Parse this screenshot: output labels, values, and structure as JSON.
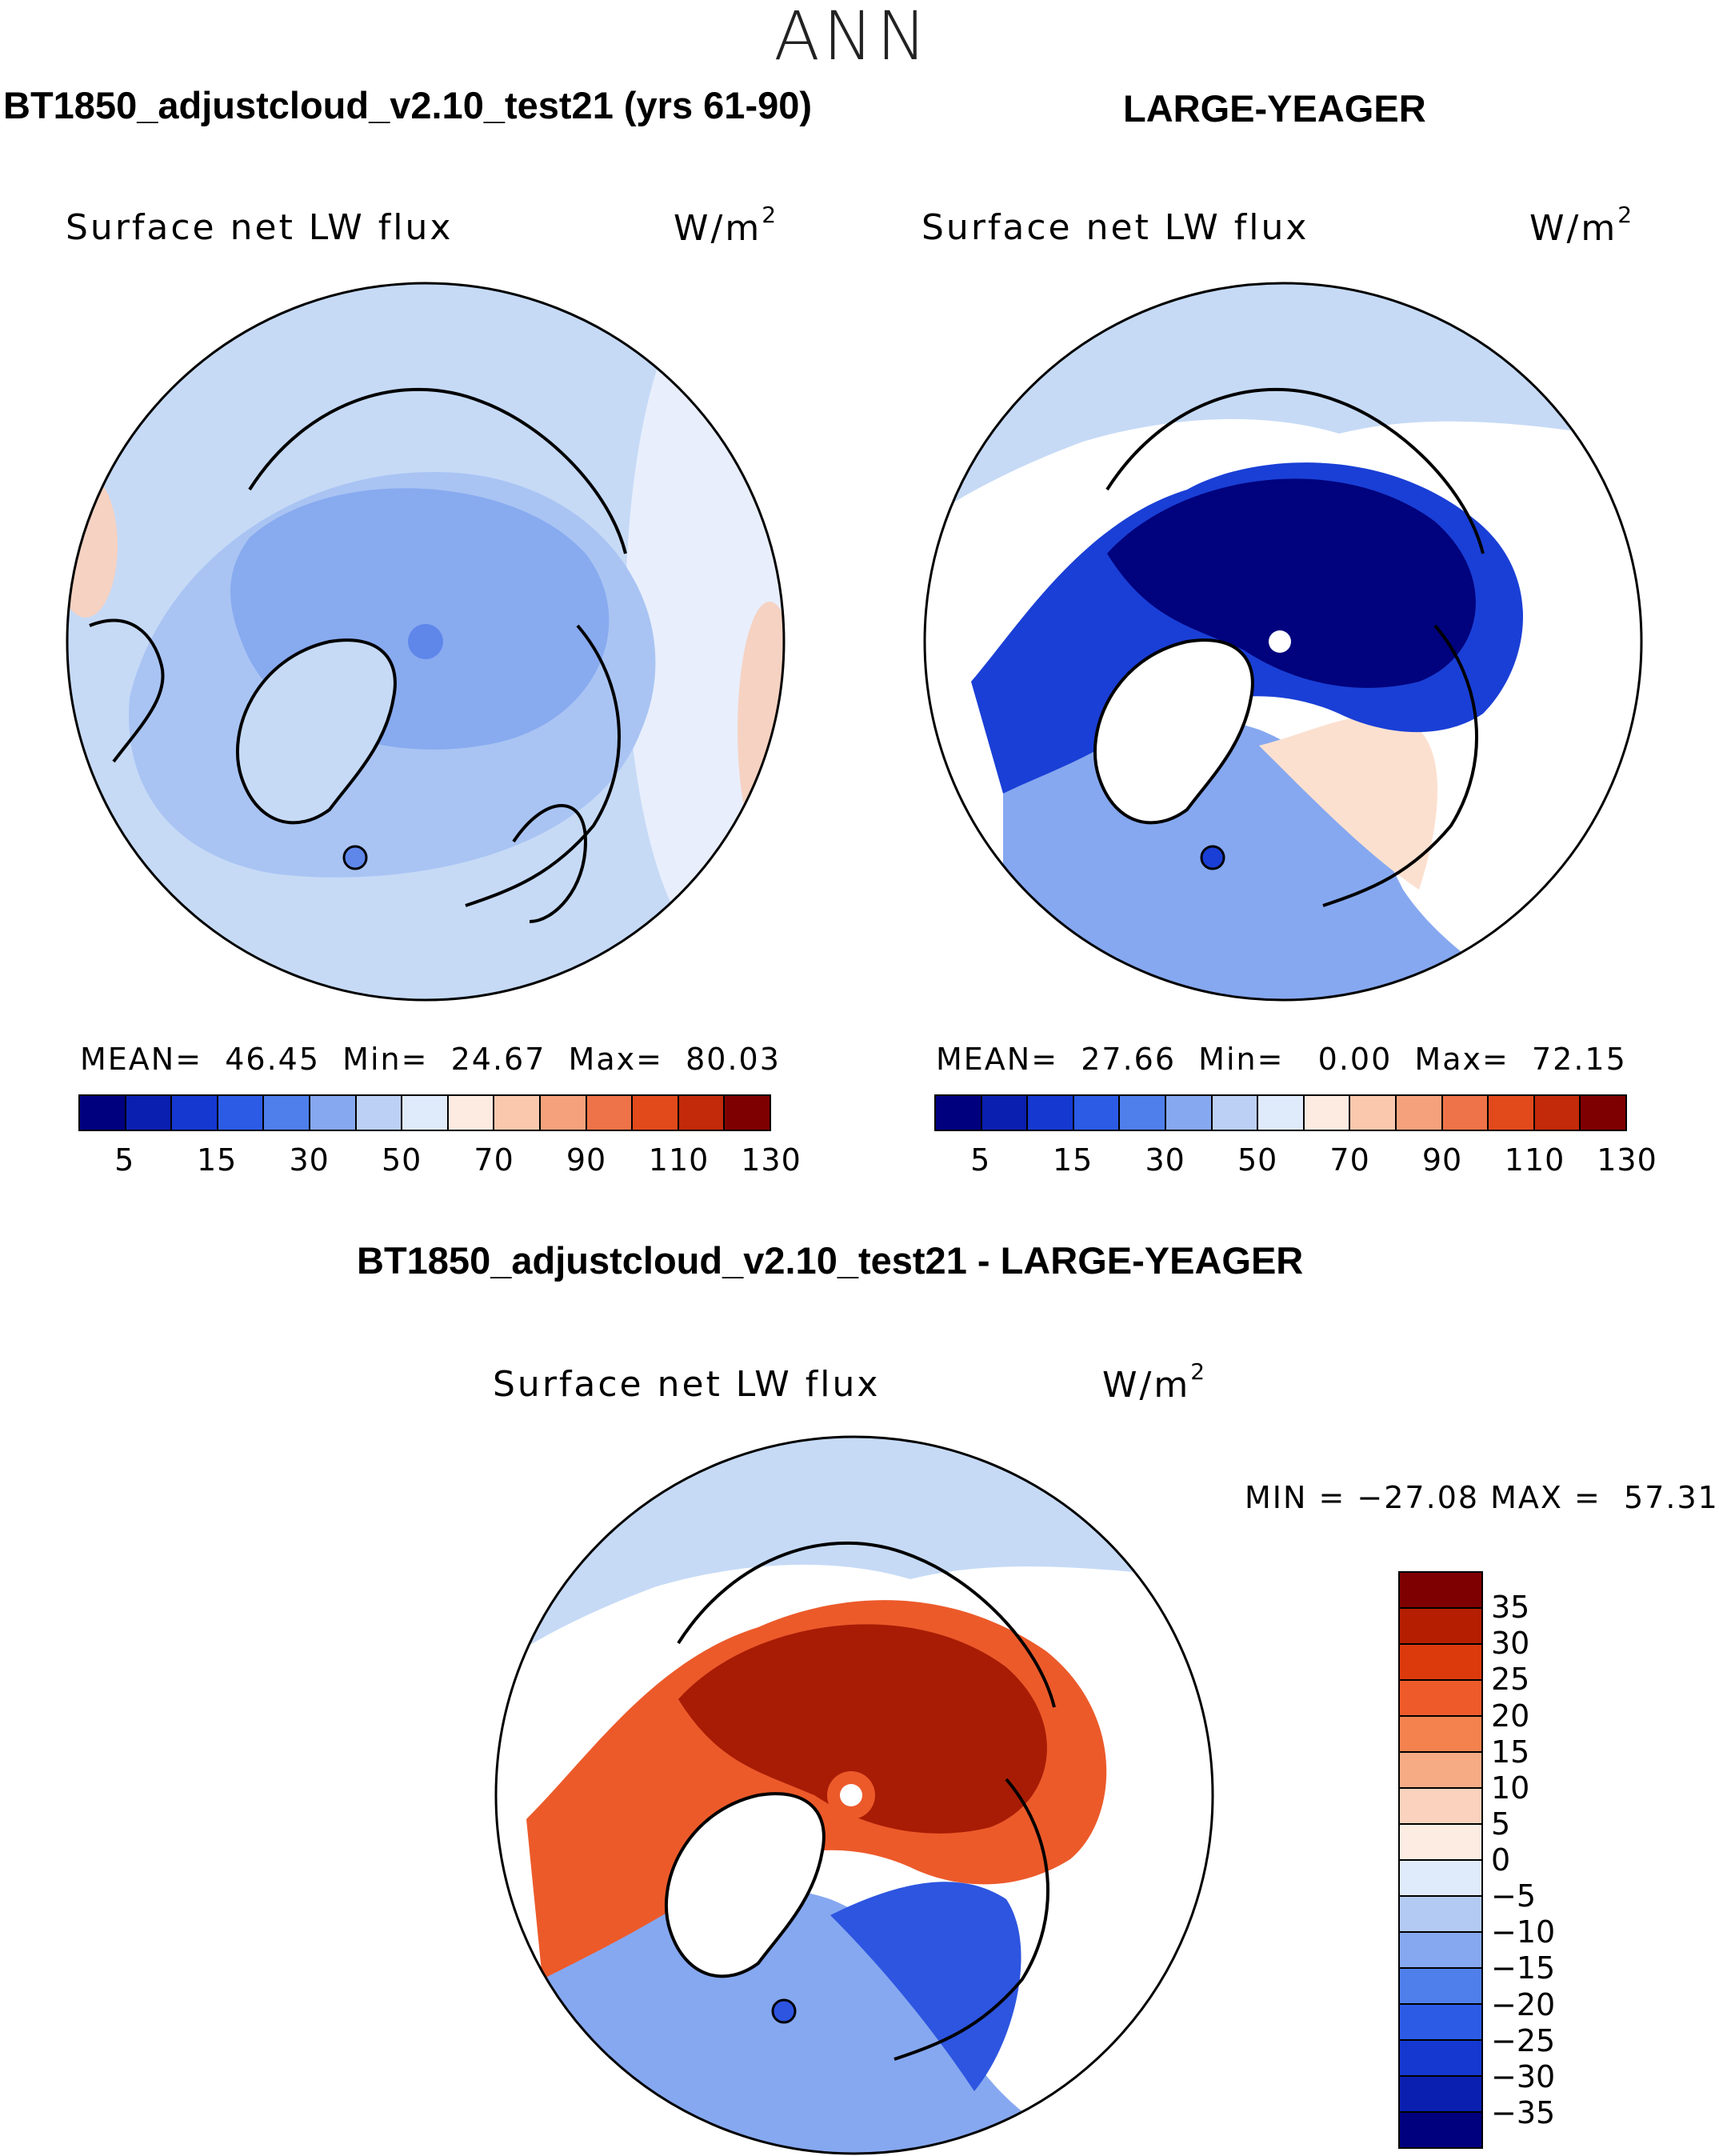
{
  "season": "ANN",
  "panels": {
    "model": {
      "case_title": "BT1850_adjustcloud_v2.10_test21 (yrs 61-90)",
      "plot_title": "Surface net LW flux",
      "units": "W/m",
      "units_exp": "2",
      "stats": "MEAN=  46.45  Min=  24.67  Max=  80.03"
    },
    "obs": {
      "case_title": "LARGE-YEAGER",
      "plot_title": "Surface net LW flux",
      "units": "W/m",
      "units_exp": "2",
      "stats": "MEAN=  27.66  Min=   0.00  Max=  72.15"
    },
    "diff": {
      "case_title": "BT1850_adjustcloud_v2.10_test21 - LARGE-YEAGER",
      "plot_title": "Surface net LW flux",
      "units": "W/m",
      "units_exp": "2",
      "stats": "MIN = −27.08 MAX =  57.31"
    }
  },
  "colorbar_main": {
    "colors": [
      "#00007f",
      "#0a1fb0",
      "#1438d0",
      "#2c5be6",
      "#4f7fea",
      "#86a8f0",
      "#bcd0f5",
      "#dfeafb",
      "#fdeae0",
      "#f9c8ad",
      "#f5a27c",
      "#ef7348",
      "#e24a1c",
      "#c22a0a",
      "#7f0000"
    ],
    "labels": [
      "5",
      "15",
      "30",
      "50",
      "70",
      "90",
      "110",
      "130"
    ]
  },
  "colorbar_diff": {
    "colors": [
      "#7f0000",
      "#b51e00",
      "#dc3a0d",
      "#ee5a2a",
      "#f4824f",
      "#f7ab85",
      "#fad2bd",
      "#fdece2",
      "#dfeafb",
      "#b3cbf3",
      "#86a8f0",
      "#4f7fea",
      "#2c5be6",
      "#1438d0",
      "#0a1fb0",
      "#00007f"
    ],
    "labels": [
      "35",
      "30",
      "25",
      "20",
      "15",
      "10",
      "5",
      "0",
      "−5",
      "−10",
      "−15",
      "−20",
      "−25",
      "−30",
      "−35"
    ]
  },
  "map_colors": {
    "model_bg": "#c6daf6",
    "model_mid": "#a9c4f3",
    "model_ice": "#88aaef",
    "model_edge": "#e8eefc",
    "model_warm": "#f6d2c2",
    "obs_bg": "#c6daf6",
    "obs_mid": "#86a8f0",
    "obs_core": "#00037d",
    "obs_ring": "#1a3fd6",
    "obs_warm": "#fbe0d0",
    "diff_red": "#c22a0a",
    "diff_dark": "#a81c05",
    "diff_orange": "#ec5a2a",
    "diff_blue": "#6d95ee",
    "diff_darkblue": "#2d55e0",
    "diff_light": "#c6daf6",
    "land": "#ffffff",
    "coast": "#000000"
  }
}
